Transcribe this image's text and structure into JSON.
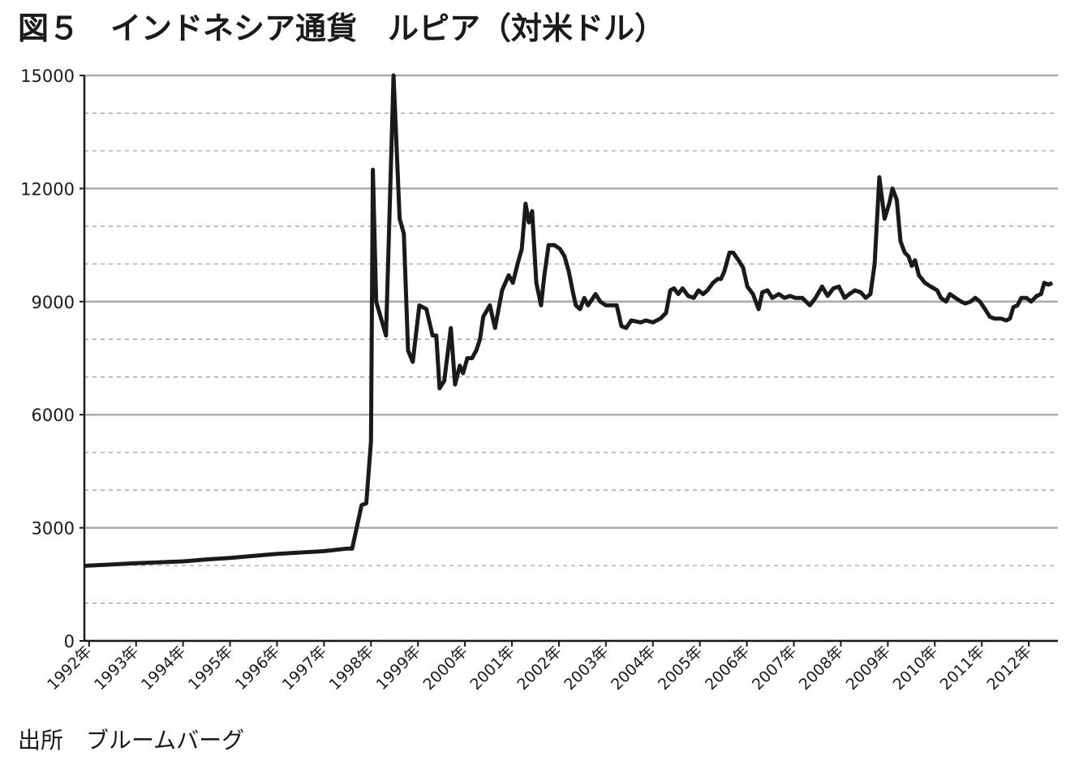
{
  "chart_data": {
    "type": "line",
    "title": "図５　インドネシア通貨　ルピア（対米ドル）",
    "source": "出所　ブルームバーグ",
    "x": [
      1991.9,
      1993.0,
      1994.0,
      1994.5,
      1995.0,
      1996.0,
      1997.0,
      1997.5,
      1997.6,
      1997.8,
      1997.9,
      1998.0,
      1998.04,
      1998.11,
      1998.32,
      1998.48,
      1998.61,
      1998.7,
      1998.79,
      1998.89,
      1999.03,
      1999.18,
      1999.31,
      1999.39,
      1999.46,
      1999.56,
      1999.7,
      1999.79,
      1999.89,
      1999.96,
      2000.05,
      2000.15,
      2000.24,
      2000.32,
      2000.39,
      2000.53,
      2000.64,
      2000.79,
      2000.93,
      2001.02,
      2001.12,
      2001.21,
      2001.29,
      2001.36,
      2001.43,
      2001.52,
      2001.62,
      2001.69,
      2001.78,
      2001.9,
      2002.02,
      2002.12,
      2002.21,
      2002.29,
      2002.36,
      2002.45,
      2002.54,
      2002.62,
      2002.78,
      2002.88,
      2003.0,
      2003.23,
      2003.33,
      2003.43,
      2003.54,
      2003.74,
      2003.85,
      2004.0,
      2004.16,
      2004.28,
      2004.37,
      2004.45,
      2004.54,
      2004.63,
      2004.75,
      2004.87,
      2004.97,
      2005.07,
      2005.16,
      2005.28,
      2005.38,
      2005.45,
      2005.52,
      2005.63,
      2005.71,
      2005.82,
      2005.92,
      2006.01,
      2006.13,
      2006.25,
      2006.33,
      2006.44,
      2006.54,
      2006.68,
      2006.8,
      2006.92,
      2007.03,
      2007.18,
      2007.34,
      2007.46,
      2007.6,
      2007.72,
      2007.84,
      2007.96,
      2008.08,
      2008.18,
      2008.3,
      2008.42,
      2008.53,
      2008.63,
      2008.72,
      2008.82,
      2008.93,
      2009.03,
      2009.1,
      2009.19,
      2009.27,
      2009.36,
      2009.44,
      2009.51,
      2009.58,
      2009.66,
      2009.79,
      2009.91,
      2010.05,
      2010.13,
      2010.24,
      2010.32,
      2010.44,
      2010.56,
      2010.65,
      2010.76,
      2010.86,
      2010.96,
      2011.07,
      2011.17,
      2011.27,
      2011.41,
      2011.52,
      2011.6,
      2011.67,
      2011.76,
      2011.84,
      2011.95,
      2012.05,
      2012.17,
      2012.26,
      2012.33,
      2012.42,
      2012.5
    ],
    "series": [
      {
        "name": "ルピア",
        "color": "#1a1a1a",
        "values": [
          1990,
          2060,
          2110,
          2160,
          2200,
          2310,
          2380,
          2450,
          2450,
          3600,
          3650,
          5300,
          12500,
          9000,
          8100,
          15000,
          11200,
          10800,
          7700,
          7400,
          8900,
          8800,
          8100,
          8100,
          6700,
          6900,
          8300,
          6800,
          7300,
          7100,
          7500,
          7500,
          7700,
          8000,
          8600,
          8900,
          8300,
          9300,
          9700,
          9500,
          10000,
          10400,
          11600,
          11100,
          11400,
          9500,
          8900,
          9700,
          10500,
          10500,
          10400,
          10200,
          9800,
          9300,
          8900,
          8800,
          9100,
          8900,
          9200,
          9000,
          8900,
          8900,
          8350,
          8300,
          8500,
          8450,
          8500,
          8450,
          8550,
          8700,
          9300,
          9350,
          9200,
          9350,
          9150,
          9100,
          9300,
          9200,
          9300,
          9500,
          9600,
          9600,
          9800,
          10300,
          10300,
          10100,
          9900,
          9400,
          9200,
          8800,
          9250,
          9300,
          9100,
          9200,
          9100,
          9150,
          9100,
          9100,
          8900,
          9100,
          9400,
          9150,
          9350,
          9400,
          9100,
          9200,
          9300,
          9250,
          9100,
          9200,
          10000,
          12300,
          11200,
          11600,
          12000,
          11700,
          10600,
          10300,
          10200,
          9950,
          10100,
          9700,
          9500,
          9400,
          9300,
          9100,
          9000,
          9200,
          9100,
          9000,
          8950,
          9000,
          9100,
          9000,
          8800,
          8600,
          8550,
          8550,
          8500,
          8550,
          8850,
          8900,
          9100,
          9100,
          9000,
          9150,
          9200,
          9500,
          9450,
          9500
        ]
      }
    ],
    "xlim": [
      1991.9,
      2012.62
    ],
    "xticks": [
      {
        "value": 1992,
        "label": "1992年"
      },
      {
        "value": 1993,
        "label": "1993年"
      },
      {
        "value": 1994,
        "label": "1994年"
      },
      {
        "value": 1995,
        "label": "1995年"
      },
      {
        "value": 1996,
        "label": "1996年"
      },
      {
        "value": 1997,
        "label": "1997年"
      },
      {
        "value": 1998,
        "label": "1998年"
      },
      {
        "value": 1999,
        "label": "1999年"
      },
      {
        "value": 2000,
        "label": "2000年"
      },
      {
        "value": 2001,
        "label": "2001年"
      },
      {
        "value": 2002,
        "label": "2002年"
      },
      {
        "value": 2003,
        "label": "2003年"
      },
      {
        "value": 2004,
        "label": "2004年"
      },
      {
        "value": 2005,
        "label": "2005年"
      },
      {
        "value": 2006,
        "label": "2006年"
      },
      {
        "value": 2007,
        "label": "2007年"
      },
      {
        "value": 2008,
        "label": "2008年"
      },
      {
        "value": 2009,
        "label": "2009年"
      },
      {
        "value": 2010,
        "label": "2010年"
      },
      {
        "value": 2011,
        "label": "2011年"
      },
      {
        "value": 2012,
        "label": "2012年"
      }
    ],
    "ylim": [
      0,
      15000
    ],
    "yticks": [
      0,
      3000,
      6000,
      9000,
      12000,
      15000
    ],
    "minor_yticks": [
      1000,
      2000,
      4000,
      5000,
      7000,
      8000,
      10000,
      11000,
      13000,
      14000
    ],
    "grid": true
  }
}
